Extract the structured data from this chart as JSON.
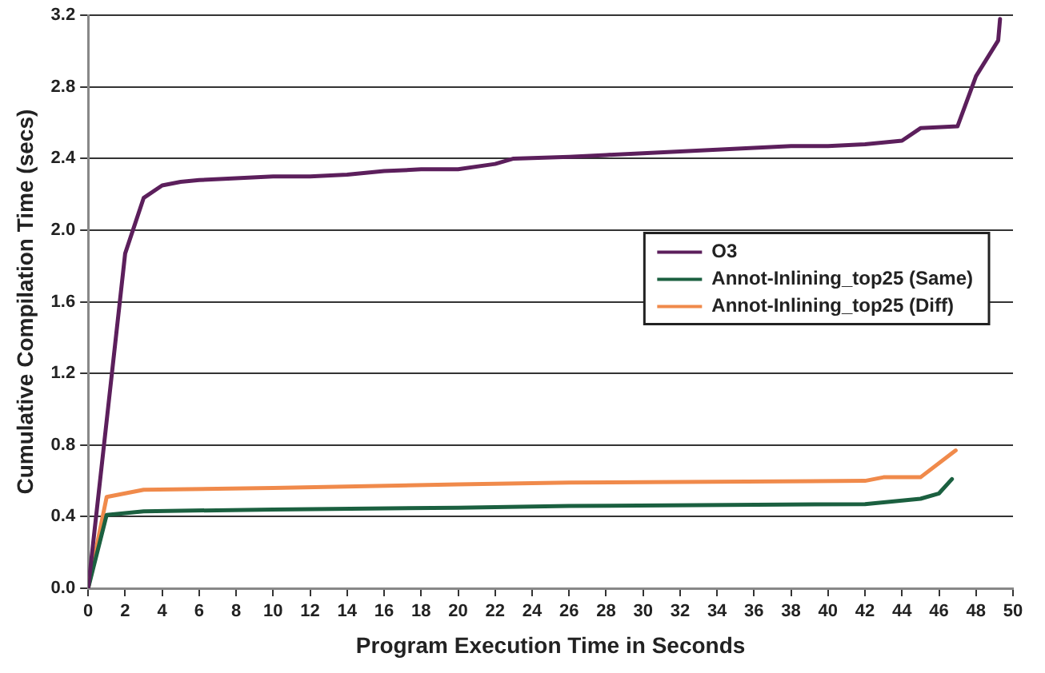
{
  "chart_data": {
    "type": "line",
    "xlabel": "Program Execution Time in Seconds",
    "ylabel": "Cumulative Compilation Time (secs)",
    "xlim": [
      0,
      50
    ],
    "xticks": [
      0,
      2,
      4,
      6,
      8,
      10,
      12,
      14,
      16,
      18,
      20,
      22,
      24,
      26,
      28,
      30,
      32,
      34,
      36,
      38,
      40,
      42,
      44,
      46,
      48,
      50
    ],
    "ylim": [
      0,
      3.2
    ],
    "yticks": [
      {
        "value": 0,
        "label": "0.0"
      },
      {
        "value": 0.4,
        "label": "0.4"
      },
      {
        "value": 0.8,
        "label": "0.8"
      },
      {
        "value": 1.2,
        "label": "1.2"
      },
      {
        "value": 1.6,
        "label": "1.6"
      },
      {
        "value": 2,
        "label": "2.0"
      },
      {
        "value": 2.4,
        "label": "2.4"
      },
      {
        "value": 2.8,
        "label": "2.8"
      },
      {
        "value": 3.2,
        "label": "3.2"
      }
    ],
    "grid": "y",
    "legend": "right",
    "marker": "none",
    "line_style": "solid",
    "series": [
      {
        "name": "O3",
        "color": "#5c1f5c",
        "x": [
          0,
          2,
          3,
          4,
          5,
          6,
          8,
          10,
          12,
          14,
          16,
          18,
          20,
          22,
          23,
          26,
          28,
          30,
          32,
          34,
          36,
          38,
          40,
          42,
          44,
          45,
          47,
          48,
          49.2,
          49.3
        ],
        "values": [
          0,
          1.87,
          2.18,
          2.25,
          2.27,
          2.28,
          2.29,
          2.3,
          2.3,
          2.31,
          2.33,
          2.34,
          2.34,
          2.37,
          2.4,
          2.41,
          2.42,
          2.43,
          2.44,
          2.45,
          2.46,
          2.47,
          2.47,
          2.48,
          2.5,
          2.57,
          2.58,
          2.86,
          3.06,
          3.18
        ]
      },
      {
        "name": "Annot-Inlining_top25 (Same)",
        "color": "#1b6040",
        "x": [
          0,
          1,
          3,
          10,
          20,
          26,
          42,
          43,
          45,
          46,
          46.7
        ],
        "values": [
          0,
          0.41,
          0.43,
          0.44,
          0.45,
          0.46,
          0.47,
          0.48,
          0.5,
          0.53,
          0.61
        ]
      },
      {
        "name": "Annot-Inlining_top25 (Diff)",
        "color": "#f08a4b",
        "x": [
          0,
          1,
          3,
          10,
          20,
          26,
          42,
          43,
          45,
          46.9
        ],
        "values": [
          0,
          0.51,
          0.55,
          0.56,
          0.58,
          0.59,
          0.6,
          0.62,
          0.62,
          0.77
        ]
      }
    ]
  }
}
